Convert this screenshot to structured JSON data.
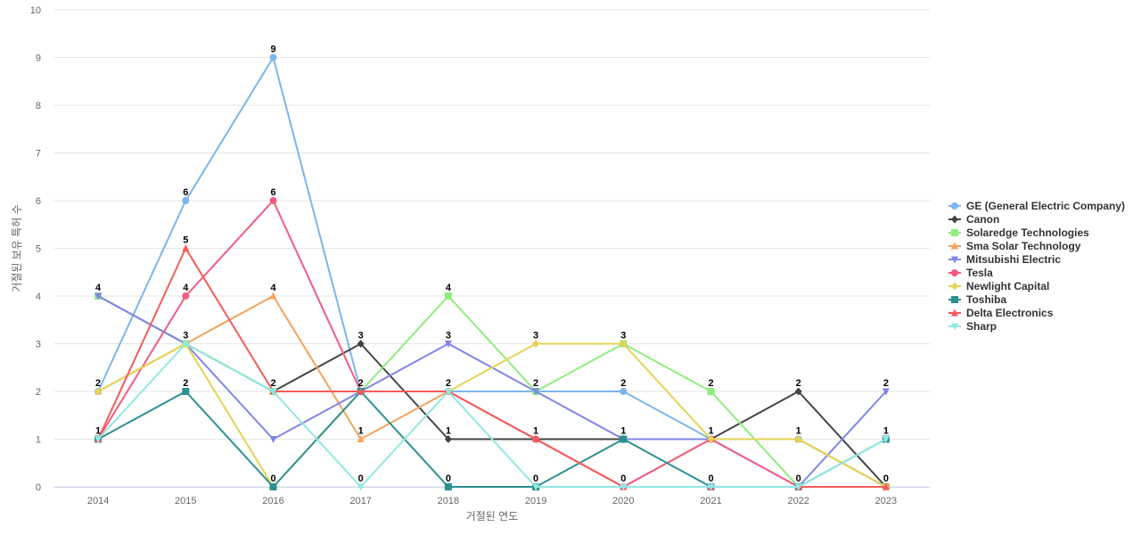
{
  "chart_data": {
    "type": "line",
    "title": "",
    "xlabel": "거절된 연도",
    "ylabel": "거절된 보유 특허 수",
    "ylim": [
      0,
      10
    ],
    "yticks": [
      0,
      1,
      2,
      3,
      4,
      5,
      6,
      7,
      8,
      9,
      10
    ],
    "grid": true,
    "legend_position": "right",
    "categories": [
      "2014",
      "2015",
      "2016",
      "2017",
      "2018",
      "2019",
      "2020",
      "2021",
      "2022",
      "2023"
    ],
    "series": [
      {
        "name": "GE (General Electric Company)",
        "color": "#7cb5ec",
        "marker": "circle",
        "values": [
          2,
          6,
          9,
          2,
          2,
          2,
          2,
          1,
          1,
          0
        ]
      },
      {
        "name": "Canon",
        "color": "#434348",
        "marker": "diamond",
        "values": [
          4,
          3,
          2,
          3,
          1,
          1,
          1,
          1,
          2,
          0
        ]
      },
      {
        "name": "Solaredge Technologies",
        "color": "#90ed7d",
        "marker": "square",
        "values": [
          4,
          3,
          2,
          2,
          4,
          2,
          3,
          2,
          0,
          0
        ]
      },
      {
        "name": "Sma Solar Technology",
        "color": "#f7a35c",
        "marker": "triangle",
        "values": [
          2,
          3,
          4,
          1,
          2,
          1,
          0,
          1,
          1,
          0
        ]
      },
      {
        "name": "Mitsubishi Electric",
        "color": "#8085e9",
        "marker": "triangle-down",
        "values": [
          4,
          3,
          1,
          2,
          3,
          2,
          1,
          1,
          0,
          2
        ]
      },
      {
        "name": "Tesla",
        "color": "#f15c80",
        "marker": "circle",
        "values": [
          1,
          4,
          6,
          2,
          2,
          1,
          0,
          1,
          0,
          0
        ]
      },
      {
        "name": "Newlight Capital",
        "color": "#e4d354",
        "marker": "diamond",
        "values": [
          2,
          3,
          0,
          2,
          2,
          3,
          3,
          1,
          1,
          0
        ]
      },
      {
        "name": "Toshiba",
        "color": "#2b908f",
        "marker": "square",
        "values": [
          1,
          2,
          0,
          2,
          0,
          0,
          1,
          0,
          0,
          1
        ]
      },
      {
        "name": "Delta Electronics",
        "color": "#f45b5b",
        "marker": "triangle",
        "values": [
          1,
          5,
          2,
          2,
          2,
          1,
          0,
          0,
          0,
          0
        ]
      },
      {
        "name": "Sharp",
        "color": "#91e8e1",
        "marker": "triangle-down",
        "values": [
          1,
          3,
          2,
          0,
          2,
          0,
          0,
          0,
          0,
          1
        ]
      }
    ],
    "data_labels": [
      {
        "category": "2014",
        "labels": [
          4,
          2,
          1
        ]
      },
      {
        "category": "2015",
        "labels": [
          6,
          5,
          4,
          3,
          2
        ]
      },
      {
        "category": "2016",
        "labels": [
          9,
          6,
          4,
          2,
          0
        ]
      },
      {
        "category": "2017",
        "labels": [
          3,
          2,
          1,
          0
        ]
      },
      {
        "category": "2018",
        "labels": [
          4,
          3,
          2,
          1,
          0
        ]
      },
      {
        "category": "2019",
        "labels": [
          3,
          2,
          1,
          0
        ]
      },
      {
        "category": "2020",
        "labels": [
          3,
          2,
          1,
          0
        ]
      },
      {
        "category": "2021",
        "labels": [
          2,
          1,
          0
        ]
      },
      {
        "category": "2022",
        "labels": [
          2,
          1,
          0
        ]
      },
      {
        "category": "2023",
        "labels": [
          2,
          1,
          0
        ]
      }
    ]
  }
}
